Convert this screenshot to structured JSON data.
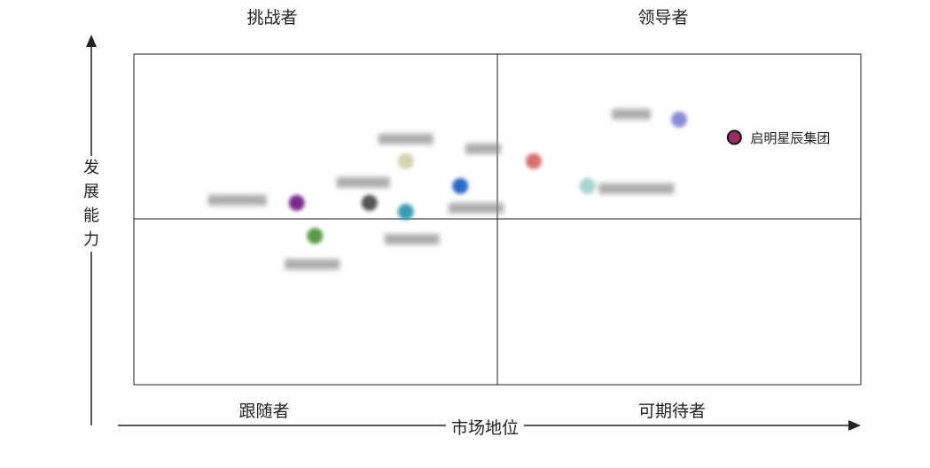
{
  "chart_data": {
    "type": "scatter",
    "title": "",
    "xlabel": "市场地位",
    "ylabel": "发展能力",
    "xlim": [
      0,
      100
    ],
    "ylim": [
      0,
      100
    ],
    "grid": false,
    "quadrant_dividers": {
      "x": 50,
      "y": 50
    },
    "quadrants": {
      "top_left": "挑战者",
      "top_right": "领导者",
      "bottom_left": "跟随者",
      "bottom_right": "可期待者"
    },
    "points": [
      {
        "name": "启明星辰集团",
        "x": 82.6,
        "y": 74.8,
        "color": "#9b2f63",
        "highlighted": true
      },
      {
        "name": "",
        "x": 75.0,
        "y": 80.2,
        "color": "#8a8ad8",
        "label_blurred": true
      },
      {
        "name": "",
        "x": 55.0,
        "y": 67.6,
        "color": "#d97070",
        "label_blurred": true
      },
      {
        "name": "",
        "x": 62.4,
        "y": 60.1,
        "color": "#a8d4d4",
        "label_blurred": true
      },
      {
        "name": "",
        "x": 44.9,
        "y": 60.1,
        "color": "#2a6bc4",
        "label_blurred": true
      },
      {
        "name": "",
        "x": 37.4,
        "y": 67.6,
        "color": "#d4d4b0",
        "label_blurred": true
      },
      {
        "name": "",
        "x": 32.4,
        "y": 55.0,
        "color": "#555555",
        "label_blurred": true
      },
      {
        "name": "",
        "x": 22.4,
        "y": 55.0,
        "color": "#7a2a8a",
        "label_blurred": true
      },
      {
        "name": "",
        "x": 37.4,
        "y": 52.3,
        "color": "#3a9ab0",
        "label_blurred": true
      },
      {
        "name": "",
        "x": 24.9,
        "y": 45.0,
        "color": "#5a9a4a",
        "label_blurred": true
      }
    ]
  }
}
